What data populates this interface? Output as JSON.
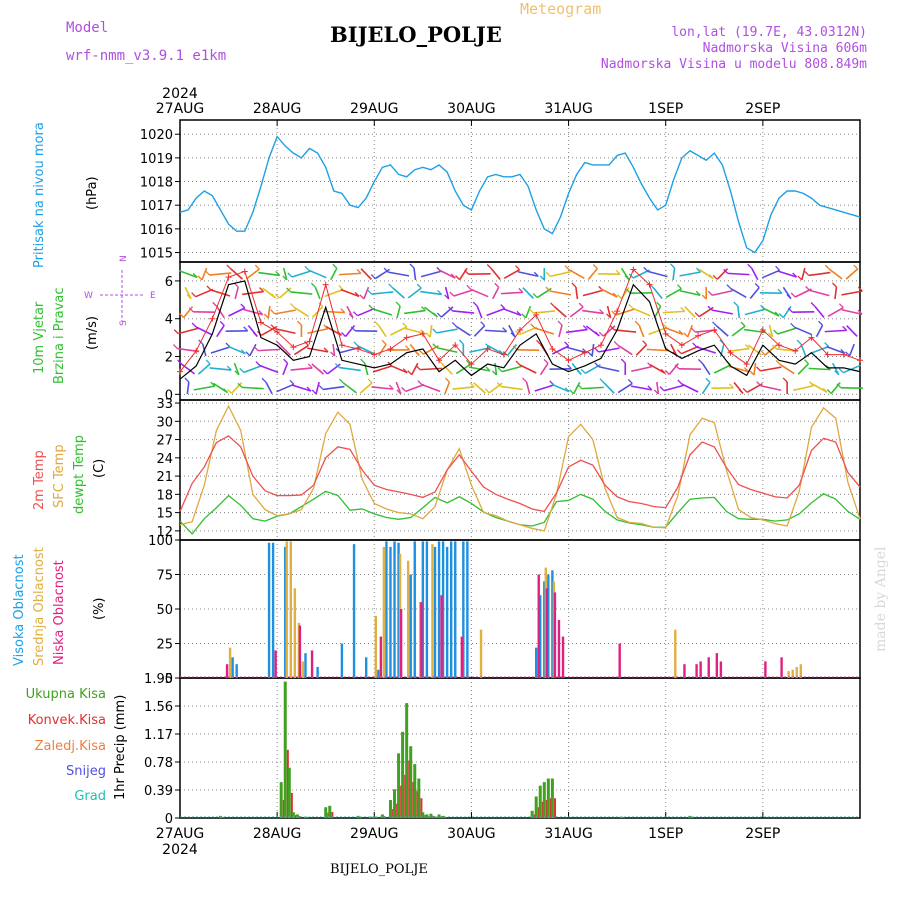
{
  "header": {
    "model_label": "Model",
    "model_name": "wrf-nmm_v3.9.1 e1km",
    "station": "BIJELO_POLJE",
    "product": "Meteogram",
    "lonlat": "lon,lat (19.7E, 43.0312N)",
    "elevation": "Nadmorska Visina 606m",
    "model_elevation": "Nadmorska Visina u modelu 808.849m"
  },
  "footer": {
    "station": "BIJELO_POLJE",
    "credit": "made by Angel"
  },
  "time_axis": {
    "year": "2024",
    "days": [
      "27AUG",
      "28AUG",
      "29AUG",
      "30AUG",
      "31AUG",
      "1SEP",
      "2SEP"
    ]
  },
  "chart_data": [
    {
      "id": "pressure",
      "type": "line",
      "ylabel": "Pritisak na nivou mora",
      "unit": "(hPa)",
      "ylim": [
        1014.6,
        1020.6
      ],
      "yticks": [
        "1015",
        "1016",
        "1017",
        "1018",
        "1019",
        "1020"
      ],
      "color": "#1ea0e6",
      "x_hours": [
        0,
        2,
        4,
        6,
        8,
        10,
        12,
        14,
        16,
        18,
        20,
        22,
        24,
        26,
        28,
        30,
        32,
        34,
        36,
        38,
        40,
        42,
        44,
        46,
        48,
        50,
        52,
        54,
        56,
        58,
        60,
        62,
        64,
        66,
        68,
        70,
        72,
        74,
        76,
        78,
        80,
        82,
        84,
        86,
        88,
        90,
        92,
        94,
        96,
        98,
        100,
        102,
        104,
        106,
        108,
        110,
        112,
        114,
        116,
        118,
        120,
        122,
        124,
        126,
        128,
        130,
        132,
        134,
        136,
        138,
        140,
        142,
        144,
        146,
        148,
        150,
        152,
        154,
        156,
        158,
        160,
        162,
        164,
        166,
        168
      ],
      "values": [
        1016.7,
        1016.8,
        1017.3,
        1017.6,
        1017.4,
        1016.8,
        1016.2,
        1015.9,
        1015.9,
        1016.7,
        1017.8,
        1019.0,
        1019.9,
        1019.5,
        1019.2,
        1019.0,
        1019.4,
        1019.2,
        1018.6,
        1017.6,
        1017.5,
        1017.0,
        1016.9,
        1017.3,
        1018.0,
        1018.6,
        1018.7,
        1018.3,
        1018.2,
        1018.5,
        1018.6,
        1018.5,
        1018.7,
        1018.4,
        1017.6,
        1017.0,
        1016.8,
        1017.6,
        1018.2,
        1018.3,
        1018.2,
        1018.2,
        1018.3,
        1017.8,
        1016.8,
        1016.0,
        1015.8,
        1016.5,
        1017.5,
        1018.3,
        1018.8,
        1018.7,
        1018.7,
        1018.7,
        1019.1,
        1019.2,
        1018.6,
        1017.9,
        1017.3,
        1016.8,
        1017.0,
        1018.1,
        1019.0,
        1019.3,
        1019.1,
        1018.9,
        1019.2,
        1018.7,
        1017.6,
        1016.3,
        1015.2,
        1015.0,
        1015.5,
        1016.6,
        1017.3,
        1017.6,
        1017.6,
        1017.5,
        1017.3,
        1017.0,
        1016.9,
        1016.8,
        1016.7,
        1016.6,
        1016.5
      ]
    },
    {
      "id": "wind",
      "type": "line",
      "ylabel": "10m Vjetar Brzina i Pravac",
      "unit": "(m/s)",
      "compass": [
        "N",
        "W",
        "E",
        "S"
      ],
      "ylim": [
        -0.3,
        7.0
      ],
      "yticks": [
        "0",
        "2",
        "4",
        "6"
      ],
      "series_color": "#000000",
      "gust_color": "#e83030",
      "x_hours": [
        0,
        4,
        8,
        12,
        16,
        20,
        24,
        28,
        32,
        36,
        40,
        44,
        48,
        52,
        56,
        60,
        64,
        68,
        72,
        76,
        80,
        84,
        88,
        92,
        96,
        100,
        104,
        108,
        112,
        116,
        120,
        124,
        128,
        132,
        136,
        140,
        144,
        148,
        152,
        156,
        160,
        164,
        168
      ],
      "values": [
        0.8,
        1.5,
        3.2,
        5.8,
        6.0,
        3.0,
        2.6,
        1.8,
        2.0,
        4.6,
        1.8,
        1.6,
        1.4,
        1.6,
        2.2,
        2.4,
        1.2,
        1.8,
        1.0,
        1.6,
        1.4,
        2.6,
        3.2,
        1.6,
        1.2,
        1.5,
        1.9,
        3.4,
        5.8,
        4.9,
        2.4,
        1.9,
        2.3,
        2.6,
        1.5,
        1.0,
        2.6,
        1.8,
        1.6,
        2.2,
        1.4,
        1.4,
        1.2
      ],
      "gusts": [
        1.2,
        2.3,
        4.0,
        6.2,
        6.5,
        3.8,
        3.3,
        2.5,
        2.8,
        5.8,
        2.6,
        2.4,
        2.1,
        2.4,
        3.0,
        3.2,
        1.8,
        2.6,
        1.6,
        2.4,
        2.1,
        3.4,
        4.2,
        2.4,
        1.8,
        2.2,
        2.6,
        4.4,
        6.6,
        5.8,
        3.2,
        2.6,
        3.1,
        3.4,
        2.2,
        1.6,
        3.4,
        2.6,
        2.3,
        3.0,
        2.1,
        2.1,
        1.8
      ]
    },
    {
      "id": "temperature",
      "type": "line",
      "ylabel": [
        "2m Temp",
        "SFC Temp",
        "dewpt Temp"
      ],
      "unit": "(C)",
      "ylim": [
        10.5,
        33.5
      ],
      "yticks": [
        "12",
        "15",
        "18",
        "21",
        "24",
        "27",
        "30",
        "33"
      ],
      "x_hours": [
        0,
        3,
        6,
        9,
        12,
        15,
        18,
        21,
        24,
        27,
        30,
        33,
        36,
        39,
        42,
        45,
        48,
        51,
        54,
        57,
        60,
        63,
        66,
        69,
        72,
        75,
        78,
        81,
        84,
        87,
        90,
        93,
        96,
        99,
        102,
        105,
        108,
        111,
        114,
        117,
        120,
        123,
        126,
        129,
        132,
        135,
        138,
        141,
        144,
        147,
        150,
        153,
        156,
        159,
        162,
        165,
        168
      ],
      "series": [
        {
          "name": "2m Temp",
          "color": "#f05050",
          "values": [
            15.2,
            19.8,
            22.5,
            26.5,
            27.6,
            25.8,
            21.0,
            18.6,
            17.8,
            17.8,
            17.9,
            19.5,
            24.0,
            25.8,
            25.4,
            22.0,
            19.5,
            18.8,
            18.4,
            18.0,
            17.5,
            18.4,
            22.0,
            24.5,
            21.8,
            19.2,
            18.0,
            17.2,
            16.5,
            15.6,
            15.2,
            18.2,
            22.5,
            23.6,
            22.8,
            19.5,
            17.6,
            16.8,
            16.5,
            16.0,
            15.8,
            19.2,
            24.5,
            26.6,
            25.8,
            22.4,
            19.6,
            18.8,
            18.2,
            17.6,
            17.4,
            19.5,
            25.2,
            27.2,
            26.6,
            21.6,
            19.2
          ]
        },
        {
          "name": "SFC Temp",
          "color": "#e0a840",
          "values": [
            13.0,
            13.5,
            19.5,
            28.5,
            32.5,
            28.5,
            18.0,
            15.5,
            14.5,
            14.8,
            15.5,
            19.0,
            28.0,
            31.5,
            29.5,
            20.5,
            16.5,
            15.6,
            15.0,
            14.8,
            14.0,
            16.0,
            22.0,
            25.5,
            19.5,
            15.0,
            14.5,
            13.6,
            13.0,
            12.4,
            12.0,
            18.0,
            27.5,
            29.5,
            27.0,
            19.0,
            14.2,
            13.4,
            13.2,
            12.6,
            12.5,
            17.8,
            27.8,
            30.5,
            29.8,
            22.0,
            15.5,
            14.2,
            13.8,
            13.2,
            12.8,
            18.5,
            29.0,
            32.2,
            30.5,
            20.0,
            14.0
          ]
        },
        {
          "name": "dewpt Temp",
          "color": "#30c030",
          "values": [
            13.6,
            11.5,
            14.0,
            15.8,
            17.8,
            16.2,
            14.0,
            13.6,
            14.4,
            14.8,
            16.0,
            17.2,
            18.5,
            17.8,
            15.4,
            15.6,
            14.8,
            14.2,
            13.9,
            14.2,
            15.8,
            17.5,
            16.6,
            17.6,
            16.5,
            15.1,
            14.2,
            13.6,
            13.0,
            12.8,
            13.4,
            16.8,
            17.0,
            18.0,
            17.2,
            15.2,
            13.8,
            13.3,
            13.0,
            12.6,
            12.6,
            15.0,
            17.2,
            17.4,
            17.5,
            15.2,
            14.0,
            13.9,
            13.9,
            13.6,
            13.8,
            14.8,
            16.6,
            18.1,
            17.2,
            15.2,
            13.9
          ]
        }
      ]
    },
    {
      "id": "cloud",
      "type": "bar",
      "ylabel": [
        "Visoka Oblacnost",
        "Srednja Oblacnost",
        "Niska Oblacnost"
      ],
      "unit": "(%)",
      "ylim": [
        0,
        100
      ],
      "yticks": [
        "0",
        "25",
        "50",
        "75",
        "100"
      ],
      "series_colors": {
        "high": "#1e90e0",
        "mid": "#e0b040",
        "low": "#e02080",
        "mid2": "#8040d0"
      },
      "high": [
        [
          13,
          15
        ],
        [
          14,
          10
        ],
        [
          22,
          98
        ],
        [
          23,
          98
        ],
        [
          26,
          95
        ],
        [
          31,
          18
        ],
        [
          34,
          8
        ],
        [
          40,
          25
        ],
        [
          43,
          97
        ],
        [
          46,
          15
        ],
        [
          49,
          6
        ],
        [
          51,
          99
        ],
        [
          52,
          95
        ],
        [
          53,
          99
        ],
        [
          54,
          98
        ],
        [
          57,
          75
        ],
        [
          58,
          99
        ],
        [
          60,
          99
        ],
        [
          61,
          99
        ],
        [
          63,
          95
        ],
        [
          64,
          99
        ],
        [
          65,
          99
        ],
        [
          66,
          95
        ],
        [
          67,
          99
        ],
        [
          68,
          99
        ],
        [
          70,
          99
        ],
        [
          71,
          99
        ],
        [
          88,
          22
        ],
        [
          89,
          60
        ],
        [
          90,
          70
        ],
        [
          91,
          75
        ],
        [
          92,
          78
        ]
      ],
      "mid": [
        [
          12,
          22
        ],
        [
          26,
          99
        ],
        [
          27,
          99
        ],
        [
          28,
          65
        ],
        [
          29,
          40
        ],
        [
          30,
          12
        ],
        [
          48,
          45
        ],
        [
          50,
          95
        ],
        [
          54,
          90
        ],
        [
          56,
          85
        ],
        [
          59,
          55
        ],
        [
          62,
          97
        ],
        [
          74,
          35
        ],
        [
          90,
          80
        ],
        [
          92,
          70
        ],
        [
          122,
          35
        ],
        [
          150,
          5
        ],
        [
          151,
          6
        ],
        [
          152,
          8
        ],
        [
          153,
          10
        ]
      ],
      "low": [
        [
          12,
          10
        ],
        [
          24,
          20
        ],
        [
          30,
          38
        ],
        [
          33,
          20
        ],
        [
          50,
          30
        ],
        [
          55,
          50
        ],
        [
          60,
          55
        ],
        [
          65,
          60
        ],
        [
          70,
          30
        ],
        [
          89,
          75
        ],
        [
          91,
          65
        ],
        [
          93,
          62
        ],
        [
          94,
          42
        ],
        [
          95,
          30
        ],
        [
          109,
          25
        ],
        [
          125,
          10
        ],
        [
          128,
          10
        ],
        [
          129,
          12
        ],
        [
          131,
          15
        ],
        [
          133,
          18
        ],
        [
          134,
          12
        ],
        [
          145,
          12
        ],
        [
          149,
          15
        ]
      ]
    },
    {
      "id": "precip",
      "type": "bar",
      "ylabel": [
        "Ukupna Kisa",
        "Konvek.Kisa",
        "Zaledj.Kisa",
        "Snijeg",
        "Grad"
      ],
      "unit": "1hr Precip (mm)",
      "ylim": [
        0,
        1.95
      ],
      "yticks": [
        "0",
        "0.39",
        "0.78",
        "1.17",
        "1.56",
        "1.95"
      ],
      "colors": [
        "#40a020",
        "#e03030",
        "#f08040",
        "#5050e0",
        "#20c0b0"
      ],
      "total": [
        [
          10,
          0.03
        ],
        [
          25,
          0.5
        ],
        [
          26,
          1.9
        ],
        [
          27,
          0.7
        ],
        [
          28,
          0.08
        ],
        [
          29,
          0.05
        ],
        [
          31,
          0.02
        ],
        [
          36,
          0.15
        ],
        [
          37,
          0.17
        ],
        [
          44,
          0.03
        ],
        [
          47,
          0.02
        ],
        [
          48,
          0.02
        ],
        [
          50,
          0.05
        ],
        [
          52,
          0.25
        ],
        [
          53,
          0.4
        ],
        [
          54,
          0.9
        ],
        [
          55,
          1.2
        ],
        [
          56,
          1.6
        ],
        [
          57,
          1.0
        ],
        [
          58,
          0.75
        ],
        [
          59,
          0.55
        ],
        [
          60,
          0.08
        ],
        [
          61,
          0.05
        ],
        [
          62,
          0.06
        ],
        [
          63,
          0.02
        ],
        [
          64,
          0.05
        ],
        [
          65,
          0.03
        ],
        [
          87,
          0.1
        ],
        [
          88,
          0.3
        ],
        [
          89,
          0.45
        ],
        [
          90,
          0.5
        ],
        [
          91,
          0.55
        ],
        [
          92,
          0.55
        ],
        [
          109,
          0.02
        ],
        [
          126,
          0.03
        ]
      ]
    }
  ]
}
